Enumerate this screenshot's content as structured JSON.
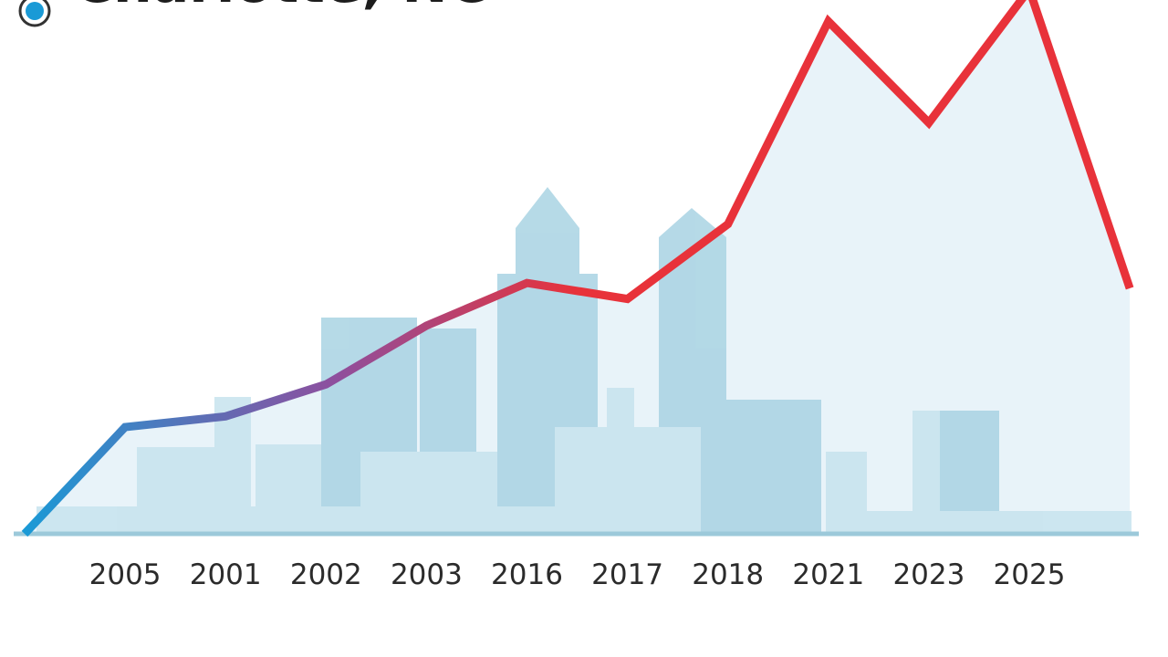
{
  "chart_data": {
    "type": "line",
    "title": "Charlotte, NC",
    "categories": [
      null,
      "2005",
      "2001",
      "2002",
      "2003",
      "2016",
      "2017",
      "2018",
      "2021",
      "2023",
      "2025",
      null
    ],
    "values": [
      0,
      20,
      22,
      28,
      39,
      47,
      44,
      58,
      96,
      77,
      102,
      46
    ],
    "colors": [
      "#1a9ad6",
      "#8e4f9e",
      "#e8323a"
    ],
    "ylim": [
      0,
      100
    ]
  }
}
